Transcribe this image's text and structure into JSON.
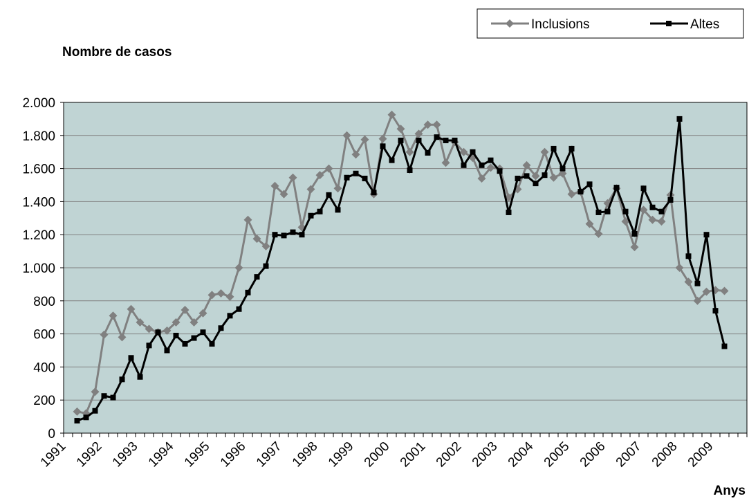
{
  "chart_data": {
    "type": "line",
    "title": "Nombre de casos",
    "x_label": "Anys",
    "categories": [
      "1991",
      null,
      null,
      null,
      "1992",
      null,
      null,
      null,
      "1993",
      null,
      null,
      null,
      "1994",
      null,
      null,
      null,
      "1995",
      null,
      null,
      null,
      "1996",
      null,
      null,
      null,
      "1997",
      null,
      null,
      null,
      "1998",
      null,
      null,
      null,
      "1999",
      null,
      null,
      null,
      "2000",
      null,
      null,
      null,
      "2001",
      null,
      null,
      null,
      "2002",
      null,
      null,
      null,
      "2003",
      null,
      null,
      null,
      "2004",
      null,
      null,
      null,
      "2005",
      null,
      null,
      null,
      "2006",
      null,
      null,
      null,
      "2007",
      null,
      null,
      null,
      "2008",
      null,
      null,
      null,
      "2009",
      null,
      null,
      null
    ],
    "series": [
      {
        "name": "Inclusions",
        "color": "#808080",
        "marker": "diamond",
        "values": [
          null,
          130,
          120,
          250,
          595,
          710,
          580,
          750,
          670,
          630,
          610,
          620,
          670,
          745,
          670,
          725,
          835,
          845,
          825,
          1000,
          1290,
          1175,
          1130,
          1495,
          1445,
          1545,
          1245,
          1475,
          1560,
          1600,
          1480,
          1800,
          1685,
          1775,
          1445,
          1780,
          1925,
          1840,
          1700,
          1810,
          1865,
          1865,
          1635,
          1760,
          1700,
          1665,
          1540,
          1605,
          1600,
          1425,
          1475,
          1620,
          1555,
          1700,
          1545,
          1570,
          1445,
          1460,
          1265,
          1205,
          1390,
          1480,
          1280,
          1125,
          1350,
          1290,
          1280,
          1440,
          1000,
          915,
          800,
          855,
          865,
          860,
          null,
          null
        ]
      },
      {
        "name": "Altes",
        "color": "#000000",
        "marker": "square",
        "values": [
          null,
          75,
          95,
          135,
          225,
          215,
          325,
          455,
          340,
          530,
          610,
          500,
          590,
          540,
          575,
          610,
          540,
          635,
          710,
          750,
          850,
          945,
          1010,
          1200,
          1195,
          1215,
          1200,
          1315,
          1340,
          1440,
          1350,
          1545,
          1570,
          1540,
          1455,
          1735,
          1650,
          1770,
          1590,
          1770,
          1695,
          1790,
          1770,
          1770,
          1620,
          1700,
          1620,
          1650,
          1585,
          1335,
          1540,
          1555,
          1510,
          1560,
          1720,
          1600,
          1720,
          1460,
          1505,
          1335,
          1340,
          1485,
          1340,
          1205,
          1480,
          1365,
          1340,
          1410,
          1900,
          1070,
          905,
          1200,
          740,
          525,
          null,
          null
        ]
      }
    ],
    "ylim": [
      0,
      2000
    ],
    "yticks": [
      0,
      200,
      400,
      600,
      800,
      {
        "value": 1000,
        "label": "1.000"
      },
      {
        "value": 1200,
        "label": "1.200"
      },
      {
        "value": 1400,
        "label": "1.400"
      },
      {
        "value": 1600,
        "label": "1.600"
      },
      {
        "value": 1800,
        "label": "1.800"
      },
      {
        "value": 2000,
        "label": "2.000"
      }
    ],
    "grid": true,
    "background": "#c0d4d4",
    "legend": "top-right"
  }
}
